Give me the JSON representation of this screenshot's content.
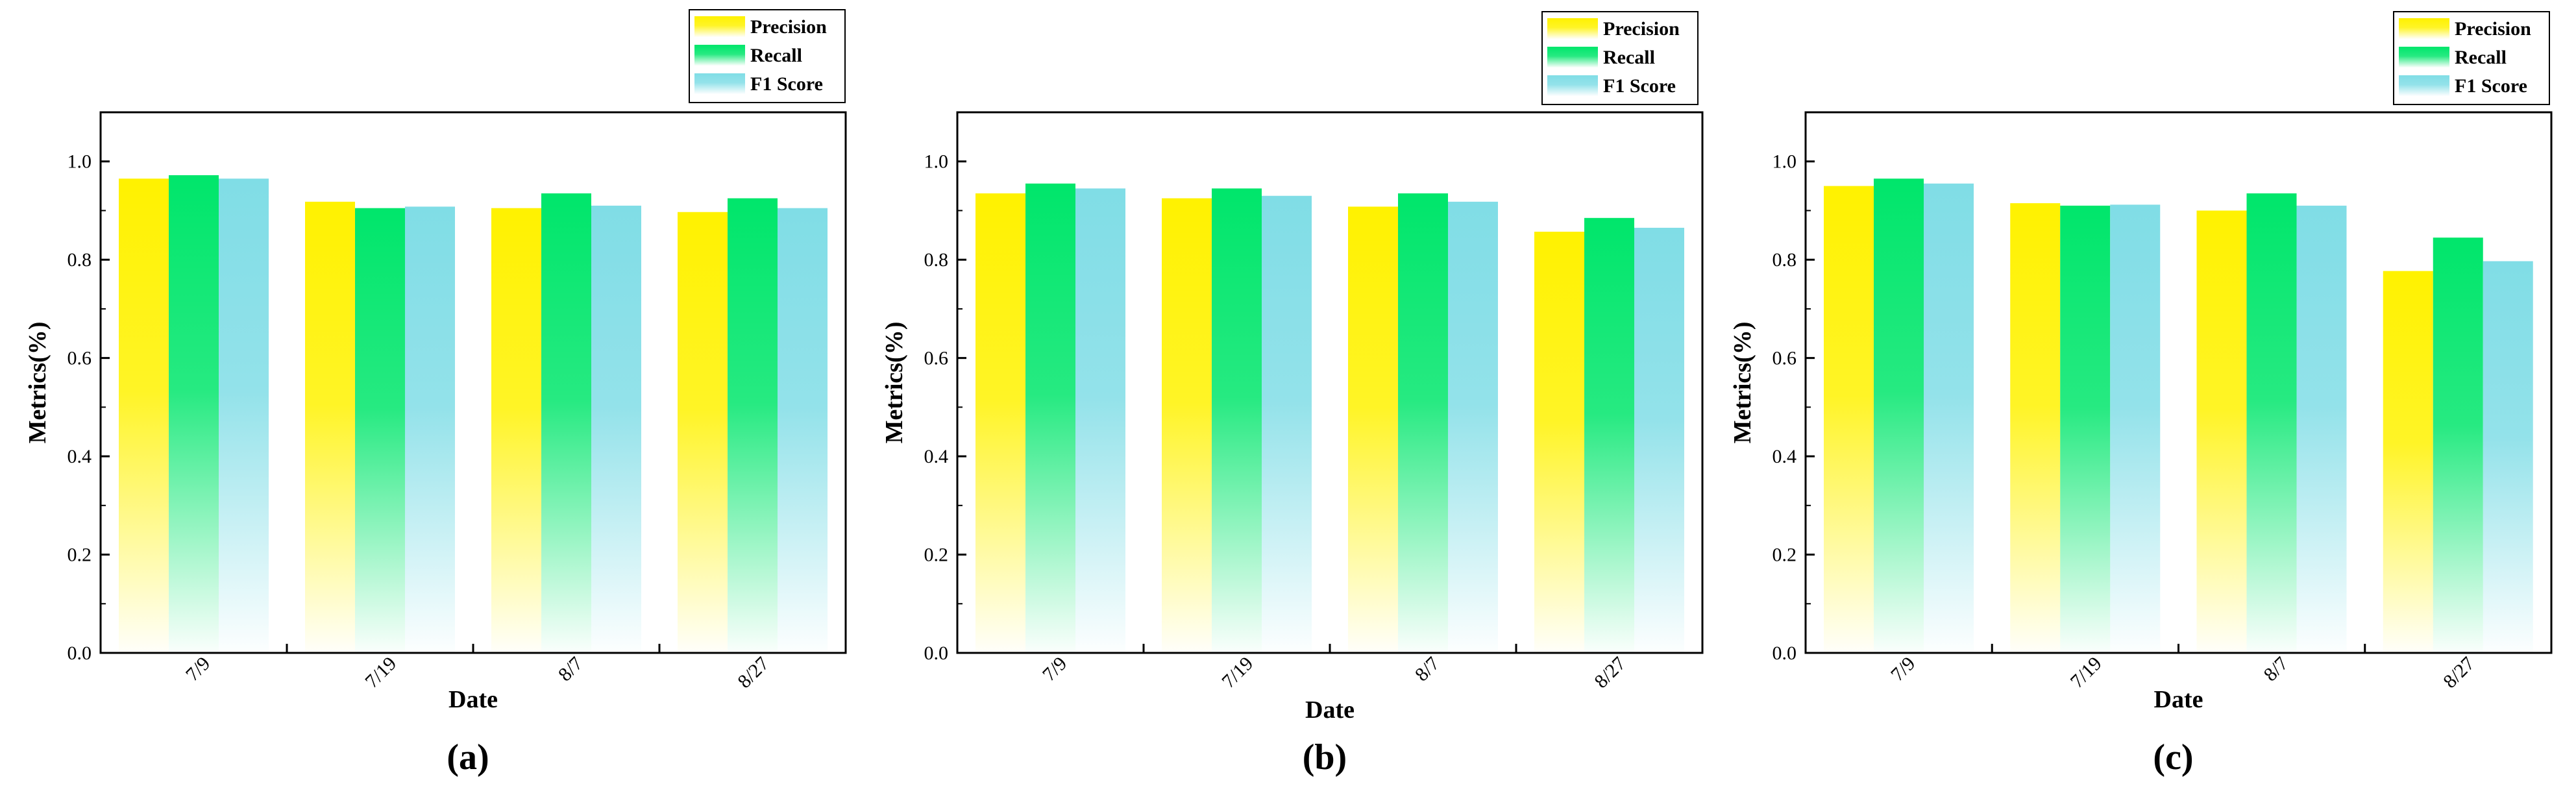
{
  "colors": {
    "precision": "#fff200",
    "recall": "#00e66b",
    "f1": "#80dde6",
    "axis": "#000000"
  },
  "legend": [
    "Precision",
    "Recall",
    "F1 Score"
  ],
  "chart_data": [
    {
      "type": "bar",
      "panel_label": "(a)",
      "categories": [
        "7/9",
        "7/19",
        "8/7",
        "8/27"
      ],
      "series": [
        {
          "name": "Precision",
          "values": [
            0.965,
            0.918,
            0.905,
            0.897
          ]
        },
        {
          "name": "Recall",
          "values": [
            0.972,
            0.905,
            0.935,
            0.925
          ]
        },
        {
          "name": "F1 Score",
          "values": [
            0.965,
            0.908,
            0.91,
            0.905
          ]
        }
      ],
      "xlabel": "Date",
      "ylabel": "Metrics(%)",
      "ylim": [
        0,
        1.1
      ],
      "yticks": [
        "0.0",
        "0.2",
        "0.4",
        "0.6",
        "0.8",
        "1.0"
      ]
    },
    {
      "type": "bar",
      "panel_label": "(b)",
      "categories": [
        "7/9",
        "7/19",
        "8/7",
        "8/27"
      ],
      "series": [
        {
          "name": "Precision",
          "values": [
            0.935,
            0.925,
            0.908,
            0.857
          ]
        },
        {
          "name": "Recall",
          "values": [
            0.955,
            0.945,
            0.935,
            0.885
          ]
        },
        {
          "name": "F1 Score",
          "values": [
            0.945,
            0.93,
            0.918,
            0.865
          ]
        }
      ],
      "xlabel": "Date",
      "ylabel": "Metrics(%)",
      "ylim": [
        0,
        1.1
      ],
      "yticks": [
        "0.0",
        "0.2",
        "0.4",
        "0.6",
        "0.8",
        "1.0"
      ]
    },
    {
      "type": "bar",
      "panel_label": "(c)",
      "categories": [
        "7/9",
        "7/19",
        "8/7",
        "8/27"
      ],
      "series": [
        {
          "name": "Precision",
          "values": [
            0.95,
            0.915,
            0.9,
            0.777
          ]
        },
        {
          "name": "Recall",
          "values": [
            0.965,
            0.91,
            0.935,
            0.845
          ]
        },
        {
          "name": "F1 Score",
          "values": [
            0.955,
            0.912,
            0.91,
            0.797
          ]
        }
      ],
      "xlabel": "Date",
      "ylabel": "Metrics(%)",
      "ylim": [
        0,
        1.1
      ],
      "yticks": [
        "0.0",
        "0.2",
        "0.4",
        "0.6",
        "0.8",
        "1.0"
      ]
    }
  ]
}
